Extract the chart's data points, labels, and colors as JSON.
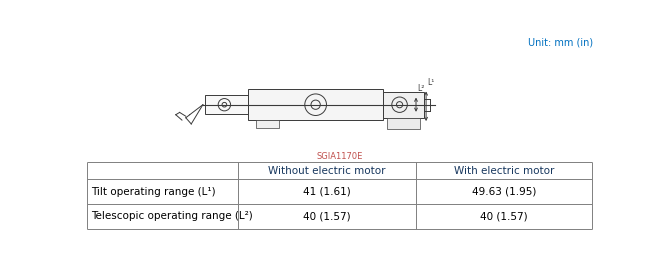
{
  "unit_text": "Unit: mm (in)",
  "unit_color": "#0070C0",
  "caption_text": "SGIA1170E",
  "caption_color": "#C0504D",
  "table": {
    "col_headers": [
      "",
      "Without electric motor",
      "With electric motor"
    ],
    "rows": [
      [
        "Tilt operating range (L¹)",
        "41 (1.61)",
        "49.63 (1.95)"
      ],
      [
        "Telescopic operating range (L²)",
        "40 (1.57)",
        "40 (1.57)"
      ]
    ]
  },
  "col_header_color": "#17375E",
  "row_label_color": "#000000",
  "cell_value_color": "#000000",
  "bg_color": "#FFFFFF",
  "table_line_color": "#808080",
  "font_size_unit": 7,
  "font_size_caption": 6,
  "font_size_table": 7.5
}
